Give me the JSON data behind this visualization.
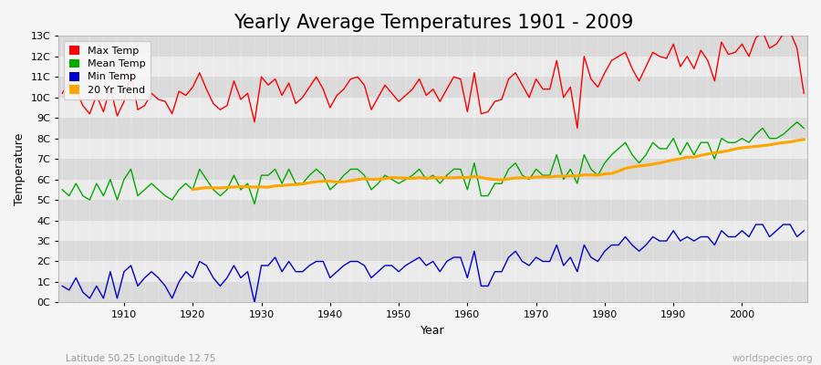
{
  "title": "Yearly Average Temperatures 1901 - 2009",
  "xlabel": "Year",
  "ylabel": "Temperature",
  "subtitle": "Latitude 50.25 Longitude 12.75",
  "watermark": "worldspecies.org",
  "years": [
    1901,
    1902,
    1903,
    1904,
    1905,
    1906,
    1907,
    1908,
    1909,
    1910,
    1911,
    1912,
    1913,
    1914,
    1915,
    1916,
    1917,
    1918,
    1919,
    1920,
    1921,
    1922,
    1923,
    1924,
    1925,
    1926,
    1927,
    1928,
    1929,
    1930,
    1931,
    1932,
    1933,
    1934,
    1935,
    1936,
    1937,
    1938,
    1939,
    1940,
    1941,
    1942,
    1943,
    1944,
    1945,
    1946,
    1947,
    1948,
    1949,
    1950,
    1951,
    1952,
    1953,
    1954,
    1955,
    1956,
    1957,
    1958,
    1959,
    1960,
    1961,
    1962,
    1963,
    1964,
    1965,
    1966,
    1967,
    1968,
    1969,
    1970,
    1971,
    1972,
    1973,
    1974,
    1975,
    1976,
    1977,
    1978,
    1979,
    1980,
    1981,
    1982,
    1983,
    1984,
    1985,
    1986,
    1987,
    1988,
    1989,
    1990,
    1991,
    1992,
    1993,
    1994,
    1995,
    1996,
    1997,
    1998,
    1999,
    2000,
    2001,
    2002,
    2003,
    2004,
    2005,
    2006,
    2007,
    2008,
    2009
  ],
  "max_temp": [
    10.2,
    10.7,
    10.4,
    9.6,
    9.2,
    10.1,
    9.3,
    10.5,
    9.1,
    9.8,
    11.2,
    9.4,
    9.6,
    10.2,
    9.9,
    9.8,
    9.2,
    10.3,
    10.1,
    10.5,
    11.2,
    10.4,
    9.7,
    9.4,
    9.6,
    10.8,
    9.9,
    10.2,
    8.8,
    11.0,
    10.6,
    10.9,
    10.1,
    10.7,
    9.7,
    10.0,
    10.5,
    11.0,
    10.4,
    9.5,
    10.1,
    10.4,
    10.9,
    11.0,
    10.6,
    9.4,
    10.0,
    10.6,
    10.2,
    9.8,
    10.1,
    10.4,
    10.9,
    10.1,
    10.4,
    9.8,
    10.4,
    11.0,
    10.9,
    9.3,
    11.2,
    9.2,
    9.3,
    9.8,
    9.9,
    10.9,
    11.2,
    10.6,
    10.0,
    10.9,
    10.4,
    10.4,
    11.8,
    10.0,
    10.5,
    8.5,
    12.0,
    10.9,
    10.5,
    11.2,
    11.8,
    12.0,
    12.2,
    11.4,
    10.8,
    11.5,
    12.2,
    12.0,
    11.9,
    12.6,
    11.5,
    12.0,
    11.4,
    12.3,
    11.8,
    10.8,
    12.7,
    12.1,
    12.2,
    12.6,
    12.0,
    12.9,
    13.2,
    12.4,
    12.6,
    13.1,
    13.2,
    12.4,
    10.2
  ],
  "mean_temp": [
    5.5,
    5.2,
    5.8,
    5.2,
    5.0,
    5.8,
    5.2,
    6.0,
    5.0,
    6.0,
    6.5,
    5.2,
    5.5,
    5.8,
    5.5,
    5.2,
    5.0,
    5.5,
    5.8,
    5.5,
    6.5,
    6.0,
    5.5,
    5.2,
    5.5,
    6.2,
    5.5,
    5.8,
    4.8,
    6.2,
    6.2,
    6.5,
    5.8,
    6.5,
    5.8,
    5.8,
    6.2,
    6.5,
    6.2,
    5.5,
    5.8,
    6.2,
    6.5,
    6.5,
    6.2,
    5.5,
    5.8,
    6.2,
    6.0,
    5.8,
    6.0,
    6.2,
    6.5,
    6.0,
    6.2,
    5.8,
    6.2,
    6.5,
    6.5,
    5.5,
    6.8,
    5.2,
    5.2,
    5.8,
    5.8,
    6.5,
    6.8,
    6.2,
    6.0,
    6.5,
    6.2,
    6.2,
    7.2,
    6.0,
    6.5,
    5.8,
    7.2,
    6.5,
    6.2,
    6.8,
    7.2,
    7.5,
    7.8,
    7.2,
    6.8,
    7.2,
    7.8,
    7.5,
    7.5,
    8.0,
    7.2,
    7.8,
    7.2,
    7.8,
    7.8,
    7.0,
    8.0,
    7.8,
    7.8,
    8.0,
    7.8,
    8.2,
    8.5,
    8.0,
    8.0,
    8.2,
    8.5,
    8.8,
    8.5
  ],
  "min_temp": [
    0.8,
    0.6,
    1.2,
    0.5,
    0.2,
    0.8,
    0.2,
    1.5,
    0.2,
    1.5,
    1.8,
    0.8,
    1.2,
    1.5,
    1.2,
    0.8,
    0.2,
    1.0,
    1.5,
    1.2,
    2.0,
    1.8,
    1.2,
    0.8,
    1.2,
    1.8,
    1.2,
    1.5,
    0.0,
    1.8,
    1.8,
    2.2,
    1.5,
    2.0,
    1.5,
    1.5,
    1.8,
    2.0,
    2.0,
    1.2,
    1.5,
    1.8,
    2.0,
    2.0,
    1.8,
    1.2,
    1.5,
    1.8,
    1.8,
    1.5,
    1.8,
    2.0,
    2.2,
    1.8,
    2.0,
    1.5,
    2.0,
    2.2,
    2.2,
    1.2,
    2.5,
    0.8,
    0.8,
    1.5,
    1.5,
    2.2,
    2.5,
    2.0,
    1.8,
    2.2,
    2.0,
    2.0,
    2.8,
    1.8,
    2.2,
    1.5,
    2.8,
    2.2,
    2.0,
    2.5,
    2.8,
    2.8,
    3.2,
    2.8,
    2.5,
    2.8,
    3.2,
    3.0,
    3.0,
    3.5,
    3.0,
    3.2,
    3.0,
    3.2,
    3.2,
    2.8,
    3.5,
    3.2,
    3.2,
    3.5,
    3.2,
    3.8,
    3.8,
    3.2,
    3.5,
    3.8,
    3.8,
    3.2,
    3.5
  ],
  "max_color": "#ff0000",
  "mean_color": "#00aa00",
  "min_color": "#0000cc",
  "trend_color": "#ffa500",
  "bg_color": "#f5f5f5",
  "plot_bg_light": "#ebebeb",
  "plot_bg_dark": "#dadada",
  "ylim": [
    0,
    13
  ],
  "yticks": [
    0,
    1,
    2,
    3,
    4,
    5,
    6,
    7,
    8,
    9,
    10,
    11,
    12,
    13
  ],
  "ytick_labels": [
    "0C",
    "1C",
    "2C",
    "3C",
    "4C",
    "5C",
    "6C",
    "7C",
    "8C",
    "9C",
    "10C",
    "11C",
    "12C",
    "13C"
  ],
  "title_fontsize": 15,
  "label_fontsize": 9,
  "tick_fontsize": 8,
  "legend_fontsize": 8,
  "trend_window": 20
}
